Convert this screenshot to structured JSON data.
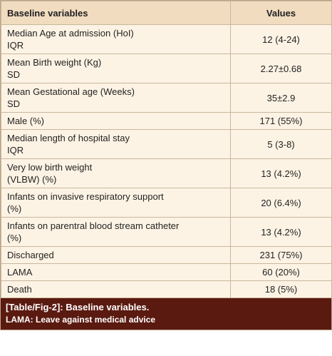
{
  "table": {
    "header": [
      "Baseline variables",
      "Values"
    ],
    "rows": [
      [
        "Median Age at admission (HoI)\nIQR",
        "12 (4-24)"
      ],
      [
        "Mean Birth weight (Kg)\nSD",
        "2.27±0.68"
      ],
      [
        "Mean Gestational age (Weeks)\nSD",
        "35±2.9"
      ],
      [
        "Male (%)",
        "171 (55%)"
      ],
      [
        "Median length of hospital stay\nIQR",
        "5 (3-8)"
      ],
      [
        "Very low birth weight\n(VLBW) (%)",
        "13 (4.2%)"
      ],
      [
        "Infants on invasive respiratory support\n(%)",
        "20 (6.4%)"
      ],
      [
        "Infants on parentral blood stream catheter\n(%)",
        "13 (4.2%)"
      ],
      [
        "Discharged",
        "231 (75%)"
      ],
      [
        "LAMA",
        "60 (20%)"
      ],
      [
        "Death",
        "18 (5%)"
      ]
    ]
  },
  "caption": {
    "title": "[Table/Fig-2]: Baseline variables.",
    "note": "LAMA: Leave against medical advice"
  }
}
